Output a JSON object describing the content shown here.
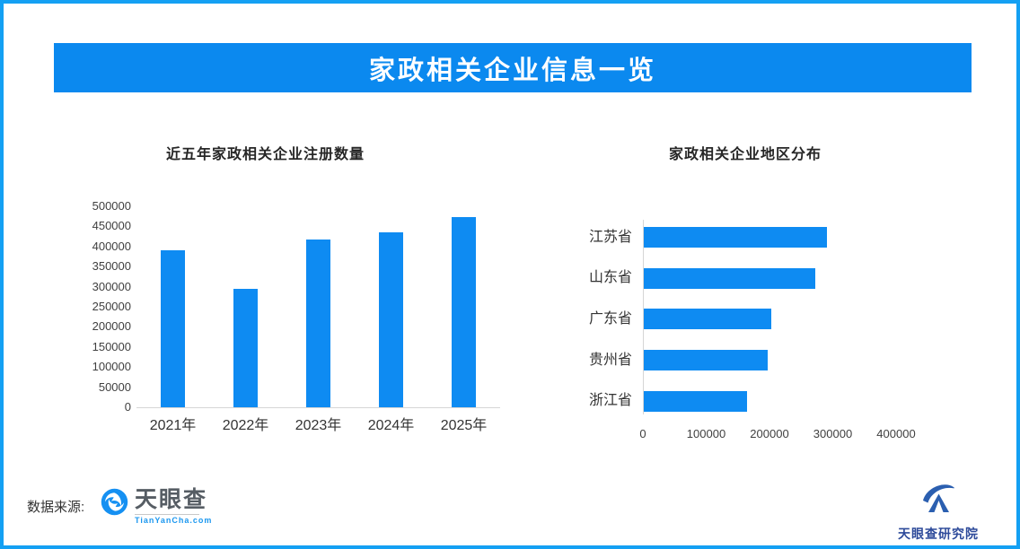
{
  "banner": {
    "title": "家政相关企业信息一览"
  },
  "chart_data": [
    {
      "type": "bar",
      "title": "近五年家政相关企业注册数量",
      "categories": [
        "2021年",
        "2022年",
        "2023年",
        "2024年",
        "2025年"
      ],
      "values": [
        391000,
        295000,
        418000,
        436000,
        474000
      ],
      "xlabel": "",
      "ylabel": "",
      "ylim": [
        0,
        500000
      ],
      "yticks": [
        0,
        50000,
        100000,
        150000,
        200000,
        250000,
        300000,
        350000,
        400000,
        450000,
        500000
      ],
      "grid": false,
      "legend": "none",
      "bar_color": "#0e8bf2"
    },
    {
      "type": "bar",
      "orientation": "horizontal",
      "title": "家政相关企业地区分布",
      "categories": [
        "江苏省",
        "山东省",
        "广东省",
        "贵州省",
        "浙江省"
      ],
      "values": [
        289000,
        271000,
        201000,
        196000,
        163000
      ],
      "xlabel": "",
      "ylabel": "",
      "xlim": [
        0,
        450000
      ],
      "xticks": [
        0,
        100000,
        200000,
        300000,
        400000
      ],
      "grid": false,
      "legend": "none",
      "bar_color": "#0e8bf2"
    }
  ],
  "footer": {
    "source_label": "数据来源:",
    "tyc_name": "天眼查",
    "tyc_domain": "TianYanCha.com",
    "institute_name": "天眼查研究院",
    "icons": {
      "tyc": "eye-swirl-icon",
      "institute": "mountain-swoosh-icon"
    }
  },
  "colors": {
    "frame_border": "#14a0f3",
    "banner_bg": "#0b89ef",
    "bar_blue": "#0e8bf2",
    "axis_gray": "#d6d6d6",
    "tyc_blue": "#1b97ef",
    "institute_navy": "#2d4a9a"
  }
}
